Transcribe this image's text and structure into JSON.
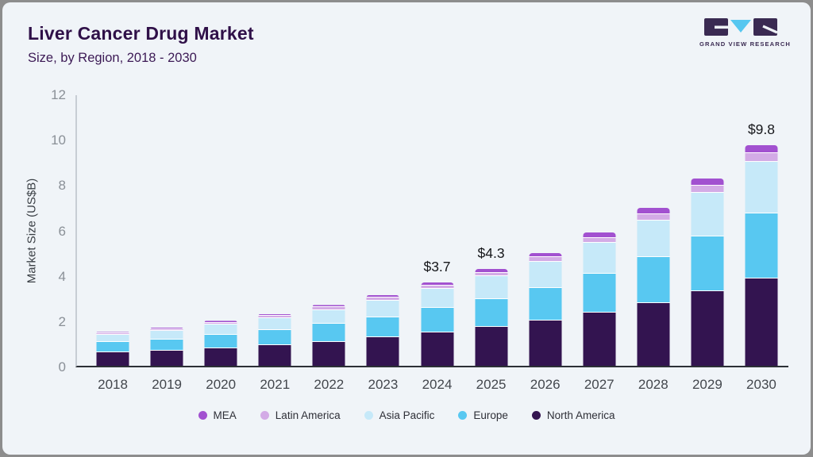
{
  "header": {
    "title": "Liver Cancer Drug Market",
    "subtitle": "Size, by Region, 2018 - 2030"
  },
  "logo": {
    "text": "GRAND VIEW RESEARCH",
    "dark_color": "#3a2a52",
    "blue_color": "#56c7f0"
  },
  "chart_data": {
    "type": "bar",
    "stacked": true,
    "title": "Liver Cancer Drug Market Size, by Region, 2018 - 2030",
    "xlabel": "",
    "ylabel": "Market Size (US$B)",
    "ylim": [
      0,
      12
    ],
    "yticks": [
      0,
      2,
      4,
      6,
      8,
      10,
      12
    ],
    "grid": false,
    "legend_position": "bottom",
    "categories": [
      "2018",
      "2019",
      "2020",
      "2021",
      "2022",
      "2023",
      "2024",
      "2025",
      "2026",
      "2027",
      "2028",
      "2029",
      "2030"
    ],
    "series": [
      {
        "name": "North America",
        "color": "#331450",
        "values": [
          0.6,
          0.67,
          0.79,
          0.92,
          1.07,
          1.25,
          1.47,
          1.72,
          1.99,
          2.36,
          2.79,
          3.31,
          3.88
        ]
      },
      {
        "name": "Europe",
        "color": "#58c8f1",
        "values": [
          0.44,
          0.49,
          0.57,
          0.66,
          0.78,
          0.91,
          1.09,
          1.25,
          1.45,
          1.71,
          2.03,
          2.41,
          2.86
        ]
      },
      {
        "name": "Asia Pacific",
        "color": "#c6e9f9",
        "values": [
          0.33,
          0.38,
          0.46,
          0.53,
          0.63,
          0.73,
          0.85,
          0.99,
          1.17,
          1.38,
          1.63,
          1.94,
          2.32
        ]
      },
      {
        "name": "Latin America",
        "color": "#d3abe6",
        "values": [
          0.07,
          0.08,
          0.09,
          0.1,
          0.12,
          0.13,
          0.14,
          0.17,
          0.2,
          0.23,
          0.28,
          0.33,
          0.37
        ]
      },
      {
        "name": "MEA",
        "color": "#a251d0",
        "values": [
          0.06,
          0.08,
          0.09,
          0.09,
          0.1,
          0.13,
          0.15,
          0.17,
          0.19,
          0.22,
          0.27,
          0.31,
          0.37
        ]
      }
    ],
    "totals": {
      "2018": 1.5,
      "2019": 1.7,
      "2020": 2.0,
      "2021": 2.3,
      "2022": 2.7,
      "2023": 3.15,
      "2024": 3.7,
      "2025": 4.3,
      "2026": 5.0,
      "2027": 5.9,
      "2028": 7.0,
      "2029": 8.3,
      "2030": 9.8
    },
    "total_labels": {
      "2024": "$3.7",
      "2025": "$4.3",
      "2030": "$9.8"
    },
    "legend": [
      "MEA",
      "Latin America",
      "Asia Pacific",
      "Europe",
      "North America"
    ]
  }
}
